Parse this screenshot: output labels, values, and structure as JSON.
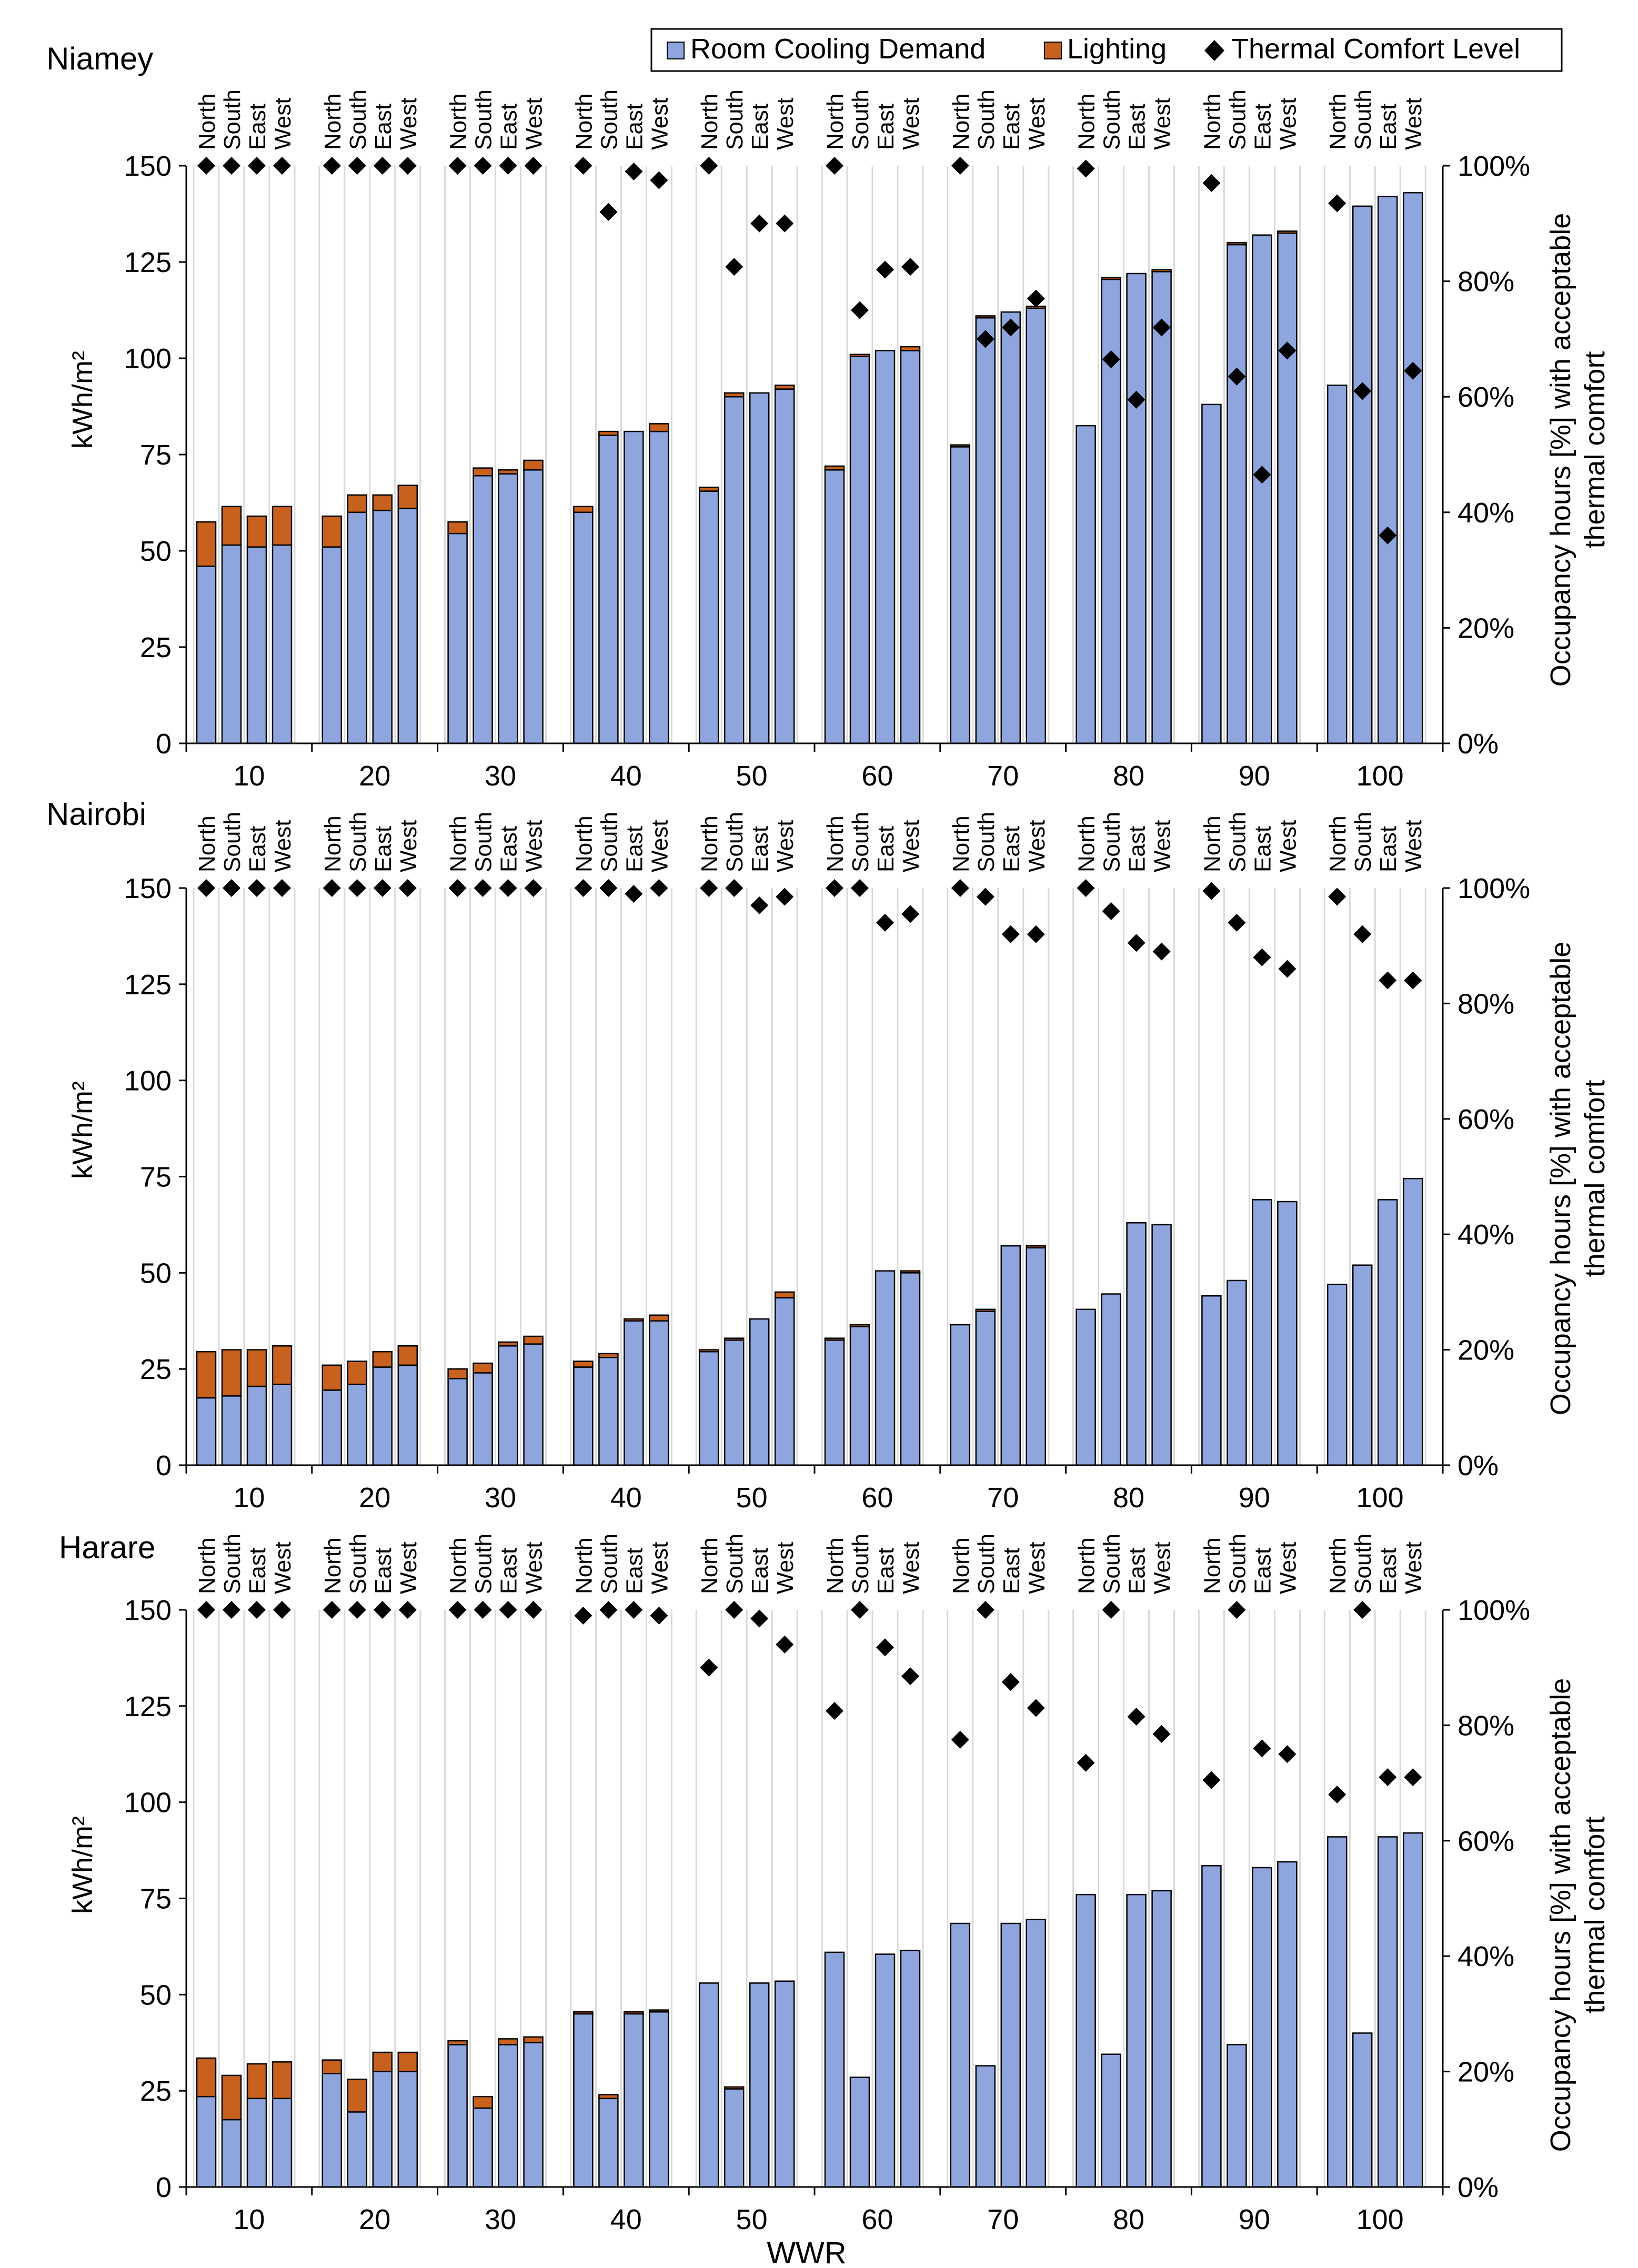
{
  "legend": {
    "cooling": "Room Cooling Demand",
    "lighting": "Lighting",
    "comfort": "Thermal Comfort Level"
  },
  "colors": {
    "cooling": "#8EA5DD",
    "lighting": "#C8601E",
    "comfort": "#000000",
    "gridline": "#D9D9D9"
  },
  "axes": {
    "y_left_label": "kWh/m²",
    "y_right_label_line1": "Occupancy hours [%] with acceptable",
    "y_right_label_line2": "thermal comfort",
    "x_label": "WWR",
    "y_left_ticks": [
      "0",
      "25",
      "50",
      "75",
      "100",
      "125",
      "150"
    ],
    "y_right_ticks": [
      "0%",
      "20%",
      "40%",
      "60%",
      "80%",
      "100%"
    ],
    "wwr_ticks": [
      "10",
      "20",
      "30",
      "40",
      "50",
      "60",
      "70",
      "80",
      "90",
      "100"
    ],
    "orientations": [
      "North",
      "South",
      "East",
      "West"
    ]
  },
  "chart_data": [
    {
      "type": "bar",
      "title": "Niamey",
      "categories": [
        "10",
        "20",
        "30",
        "40",
        "50",
        "60",
        "70",
        "80",
        "90",
        "100"
      ],
      "orientations": [
        "North",
        "South",
        "East",
        "West"
      ],
      "ylim": [
        0,
        150
      ],
      "y2lim": [
        0,
        100
      ],
      "series": [
        {
          "name": "Room Cooling Demand",
          "unit": "kWh/m2",
          "values": [
            [
              46,
              51.5,
              51,
              51.5
            ],
            [
              51,
              60,
              60.5,
              61
            ],
            [
              54.5,
              69.5,
              70,
              71
            ],
            [
              60,
              80,
              81,
              81
            ],
            [
              65.5,
              90,
              91,
              92
            ],
            [
              71,
              100.5,
              102,
              102
            ],
            [
              77,
              110.5,
              112,
              113
            ],
            [
              82.5,
              120.5,
              122,
              122.5
            ],
            [
              88,
              129.5,
              132,
              132.5
            ],
            [
              93,
              139.5,
              142,
              143
            ]
          ]
        },
        {
          "name": "Lighting",
          "unit": "kWh/m2",
          "values": [
            [
              11.5,
              10,
              8,
              10
            ],
            [
              8,
              4.5,
              4,
              6
            ],
            [
              3,
              2,
              1,
              2.5
            ],
            [
              1.5,
              1,
              0,
              2
            ],
            [
              1,
              1,
              0,
              1
            ],
            [
              1,
              0.5,
              0,
              1
            ],
            [
              0.5,
              0.5,
              0,
              0.5
            ],
            [
              0,
              0.5,
              0,
              0.5
            ],
            [
              0,
              0.5,
              0,
              0.5
            ],
            [
              0,
              0,
              0,
              0
            ]
          ]
        },
        {
          "name": "Thermal Comfort Level",
          "unit": "%",
          "values": [
            [
              100,
              100,
              100,
              100
            ],
            [
              100,
              100,
              100,
              100
            ],
            [
              100,
              100,
              100,
              100
            ],
            [
              100,
              92,
              99,
              97.5
            ],
            [
              100,
              82.5,
              90,
              90
            ],
            [
              100,
              75,
              82,
              82.5
            ],
            [
              100,
              70,
              72,
              77
            ],
            [
              99.5,
              66.5,
              59.5,
              72
            ],
            [
              97,
              63.5,
              46.5,
              68
            ],
            [
              93.5,
              61,
              36,
              64.5
            ]
          ]
        }
      ]
    },
    {
      "type": "bar",
      "title": "Nairobi",
      "categories": [
        "10",
        "20",
        "30",
        "40",
        "50",
        "60",
        "70",
        "80",
        "90",
        "100"
      ],
      "orientations": [
        "North",
        "South",
        "East",
        "West"
      ],
      "ylim": [
        0,
        150
      ],
      "y2lim": [
        0,
        100
      ],
      "series": [
        {
          "name": "Room Cooling Demand",
          "unit": "kWh/m2",
          "values": [
            [
              17.5,
              18,
              20.5,
              21
            ],
            [
              19.5,
              21,
              25.5,
              26
            ],
            [
              22.5,
              24,
              31,
              31.5
            ],
            [
              25.5,
              28,
              37.5,
              37.5
            ],
            [
              29.5,
              32.5,
              38,
              43.5
            ],
            [
              32.5,
              36,
              50.5,
              50
            ],
            [
              36.5,
              40,
              57,
              56.5
            ],
            [
              40.5,
              44.5,
              63,
              62.5
            ],
            [
              44,
              48,
              69,
              68.5
            ],
            [
              47,
              52,
              69,
              74.5
            ]
          ]
        },
        {
          "name": "Lighting",
          "unit": "kWh/m2",
          "values": [
            [
              12,
              12,
              9.5,
              10
            ],
            [
              6.5,
              6,
              4,
              5
            ],
            [
              2.5,
              2.5,
              1,
              2
            ],
            [
              1.5,
              1,
              0.5,
              1.5
            ],
            [
              0.5,
              0.5,
              0,
              1.5
            ],
            [
              0.5,
              0.5,
              0,
              0.5
            ],
            [
              0,
              0.5,
              0,
              0.5
            ],
            [
              0,
              0,
              0,
              0
            ],
            [
              0,
              0,
              0,
              0
            ],
            [
              0,
              0,
              0,
              0
            ]
          ]
        },
        {
          "name": "Thermal Comfort Level",
          "unit": "%",
          "values": [
            [
              100,
              100,
              100,
              100
            ],
            [
              100,
              100,
              100,
              100
            ],
            [
              100,
              100,
              100,
              100
            ],
            [
              100,
              100,
              99,
              100
            ],
            [
              100,
              100,
              97,
              98.5
            ],
            [
              100,
              100,
              94,
              95.5
            ],
            [
              100,
              98.5,
              92,
              92
            ],
            [
              100,
              96,
              90.5,
              89
            ],
            [
              99.5,
              94,
              88,
              86
            ],
            [
              98.5,
              92,
              84,
              84
            ]
          ]
        }
      ]
    },
    {
      "type": "bar",
      "title": "Harare",
      "categories": [
        "10",
        "20",
        "30",
        "40",
        "50",
        "60",
        "70",
        "80",
        "90",
        "100"
      ],
      "orientations": [
        "North",
        "South",
        "East",
        "West"
      ],
      "ylim": [
        0,
        150
      ],
      "y2lim": [
        0,
        100
      ],
      "series": [
        {
          "name": "Room Cooling Demand",
          "unit": "kWh/m2",
          "values": [
            [
              23.5,
              17.5,
              23,
              23
            ],
            [
              29.5,
              19.5,
              30,
              30
            ],
            [
              37,
              20.5,
              37,
              37.5
            ],
            [
              45,
              23,
              45,
              45.5
            ],
            [
              53,
              25.5,
              53,
              53.5
            ],
            [
              61,
              28.5,
              60.5,
              61.5
            ],
            [
              68.5,
              31.5,
              68.5,
              69.5
            ],
            [
              76,
              34.5,
              76,
              77
            ],
            [
              83.5,
              37,
              83,
              84.5
            ],
            [
              91,
              40,
              91,
              92
            ]
          ]
        },
        {
          "name": "Lighting",
          "unit": "kWh/m2",
          "values": [
            [
              10,
              11.5,
              9,
              9.5
            ],
            [
              3.5,
              8.5,
              5,
              5
            ],
            [
              1,
              3,
              1.5,
              1.5
            ],
            [
              0.5,
              1,
              0.5,
              0.5
            ],
            [
              0,
              0.5,
              0,
              0
            ],
            [
              0,
              0,
              0,
              0
            ],
            [
              0,
              0,
              0,
              0
            ],
            [
              0,
              0,
              0,
              0
            ],
            [
              0,
              0,
              0,
              0
            ],
            [
              0,
              0,
              0,
              0
            ]
          ]
        },
        {
          "name": "Thermal Comfort Level",
          "unit": "%",
          "values": [
            [
              100,
              100,
              100,
              100
            ],
            [
              100,
              100,
              100,
              100
            ],
            [
              100,
              100,
              100,
              100
            ],
            [
              99,
              100,
              100,
              99
            ],
            [
              90,
              100,
              98.5,
              94
            ],
            [
              82.5,
              100,
              93.5,
              88.5
            ],
            [
              77.5,
              100,
              87.5,
              83
            ],
            [
              73.5,
              100,
              81.5,
              78.5
            ],
            [
              70.5,
              100,
              76,
              75
            ],
            [
              68,
              100,
              71,
              71
            ]
          ]
        }
      ]
    }
  ]
}
